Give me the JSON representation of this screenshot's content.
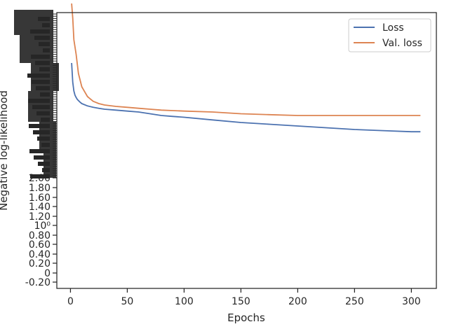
{
  "chart_data": {
    "type": "line",
    "title": "",
    "xlabel": "Epochs",
    "ylabel": "Negative log-likelihood",
    "xlim": [
      -12,
      322
    ],
    "x_ticks": [
      0,
      50,
      100,
      150,
      200,
      250,
      300
    ],
    "legend": {
      "placement": "top-right",
      "frame": true
    },
    "grid": false,
    "y_tick_labels_visible": [
      "2.00",
      "1.80",
      "1.60",
      "1.40",
      "1.20",
      "10⁰",
      "0.80",
      "0.60",
      "0.40",
      "0.20",
      "0",
      "-0.20"
    ],
    "y_tick_labels_note": "Upper tick labels overlap into an illegible dark block",
    "series": [
      {
        "name": "Loss",
        "color": "#4c72b0",
        "x": [
          1,
          2,
          3,
          4,
          5,
          6,
          8,
          10,
          15,
          20,
          25,
          30,
          40,
          50,
          60,
          70,
          80,
          90,
          100,
          125,
          150,
          175,
          200,
          225,
          250,
          275,
          300,
          308
        ],
        "y": [
          5.2,
          4.1,
          3.75,
          3.6,
          3.52,
          3.47,
          3.42,
          3.38,
          3.33,
          3.3,
          3.28,
          3.26,
          3.24,
          3.22,
          3.2,
          3.18,
          3.16,
          3.15,
          3.14,
          3.11,
          3.08,
          3.06,
          3.04,
          3.02,
          3.0,
          2.98,
          2.96,
          2.96
        ]
      },
      {
        "name": "Val. loss",
        "color": "#dd8452",
        "x": [
          1,
          2,
          3,
          5,
          7,
          10,
          15,
          20,
          25,
          30,
          40,
          50,
          60,
          70,
          80,
          90,
          100,
          125,
          150,
          175,
          200,
          225,
          250,
          275,
          300,
          308
        ],
        "y": [
          12.0,
          9.5,
          7.0,
          5.7,
          4.6,
          3.9,
          3.55,
          3.43,
          3.38,
          3.35,
          3.32,
          3.3,
          3.28,
          3.26,
          3.24,
          3.23,
          3.22,
          3.2,
          3.18,
          3.17,
          3.16,
          3.16,
          3.16,
          3.16,
          3.16,
          3.16
        ]
      }
    ]
  }
}
